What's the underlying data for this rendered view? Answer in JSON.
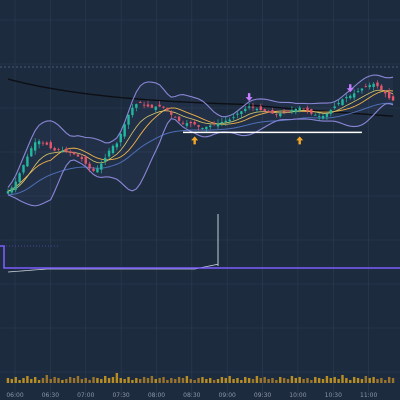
{
  "colors": {
    "background": "#1c2b3e",
    "grid": "#2d3d52",
    "up": "#22b8a0",
    "down": "#e8546a",
    "bb_band": "#8a86d6",
    "bb_basis": "#f0b24a",
    "ema": "#d8c96a",
    "slow_ma": "#0d0f14",
    "blue_ma": "#4d6fb5",
    "support": "#ffffff",
    "arrow_buy": "#f5a623",
    "arrow_sell": "#c77dff",
    "oscillator": "#7b5cff",
    "volume_up": "#d4a020",
    "volume_down": "#b0802a"
  },
  "chart_data": {
    "type": "candlestick",
    "x_tick_labels": [
      "06:00",
      "06:30",
      "07:00",
      "07:30",
      "08:00",
      "08:30",
      "09:00",
      "09:30",
      "10:00",
      "10:30",
      "11:00"
    ],
    "x": [
      0,
      1,
      2,
      3,
      4,
      5,
      6,
      7,
      8,
      9,
      10,
      11,
      12,
      13,
      14,
      15,
      16,
      17,
      18,
      19,
      20,
      21,
      22,
      23,
      24,
      25,
      26,
      27,
      28,
      29,
      30,
      31,
      32,
      33,
      34,
      35,
      36,
      37,
      38,
      39,
      40,
      41,
      42,
      43,
      44,
      45,
      46,
      47,
      48,
      49,
      50,
      51,
      52,
      53,
      54,
      55,
      56,
      57,
      58,
      59,
      60,
      61,
      62,
      63,
      64,
      65,
      66,
      67,
      68,
      69,
      70,
      71,
      72,
      73,
      74,
      75,
      76,
      77,
      78,
      79,
      80,
      81,
      82,
      83,
      84,
      85,
      86,
      87,
      88,
      89,
      90,
      91,
      92,
      93,
      94,
      95,
      96,
      97,
      98,
      99
    ],
    "close": [
      20,
      21.5,
      24,
      27.5,
      31,
      34.5,
      38,
      40.5,
      41,
      40,
      39.5,
      38,
      37,
      37.5,
      37,
      36.5,
      36,
      35.5,
      34.5,
      33.5,
      31.5,
      29.5,
      28.5,
      29.5,
      31.5,
      34,
      37,
      39,
      40,
      44,
      48,
      52,
      55,
      56.5,
      57,
      56,
      55.5,
      55,
      55.5,
      55.5,
      55,
      54,
      52,
      51,
      49.5,
      48.5,
      48.5,
      48.5,
      48,
      47,
      46.5,
      47,
      47.5,
      48,
      48.5,
      49,
      49.5,
      50,
      51,
      52.5,
      53.5,
      54.5,
      55.5,
      55,
      54.5,
      54,
      53.5,
      53,
      52.5,
      52,
      52.5,
      53,
      53.5,
      54,
      54.5,
      55,
      54.5,
      53.5,
      52.5,
      52,
      51.5,
      51.5,
      52.5,
      54,
      55.5,
      57,
      58.5,
      59.5,
      60,
      61,
      62,
      63,
      64,
      64.5,
      65,
      64,
      62.5,
      61,
      59,
      58
    ],
    "sell_markers": [
      {
        "x": 62
      },
      {
        "x": 88
      }
    ],
    "buy_markers": [
      {
        "x": 48
      },
      {
        "x": 75
      }
    ],
    "support_level": {
      "y": 48,
      "x_start": 45,
      "x_end": 91
    },
    "oscillator_spike": {
      "x": 54
    },
    "volume": [
      0.5,
      0.4,
      0.6,
      0.3,
      0.5,
      0.7,
      0.4,
      0.6,
      0.3,
      0.5,
      0.8,
      0.4,
      0.6,
      0.5,
      0.3,
      0.4,
      0.6,
      0.5,
      0.7,
      0.4,
      0.5,
      0.3,
      0.6,
      0.5,
      0.4,
      0.7,
      0.5,
      0.6,
      1,
      0.5,
      0.4,
      0.6,
      0.3,
      0.5,
      0.4,
      0.6,
      0.5,
      0.7,
      0.4,
      0.5,
      0.6,
      0.3,
      0.5,
      0.4,
      0.6,
      0.5,
      0.7,
      0.4,
      0.3,
      0.5,
      0.6,
      0.4,
      0.5,
      0.3,
      0.4,
      0.6,
      0.5,
      0.7,
      0.4,
      0.5,
      0.3,
      0.6,
      0.5,
      0.4,
      0.7,
      0.5,
      0.6,
      0.4,
      0.5,
      0.3,
      0.6,
      0.5,
      0.4,
      0.7,
      0.5,
      0.6,
      0.4,
      0.5,
      0.3,
      0.6,
      0.5,
      0.4,
      0.7,
      0.5,
      0.6,
      0.4,
      0.8,
      0.5,
      0.3,
      0.6,
      0.5,
      0.4,
      0.7,
      0.5,
      0.6,
      0.4,
      0.5,
      0.3,
      0.6,
      0.5
    ]
  }
}
